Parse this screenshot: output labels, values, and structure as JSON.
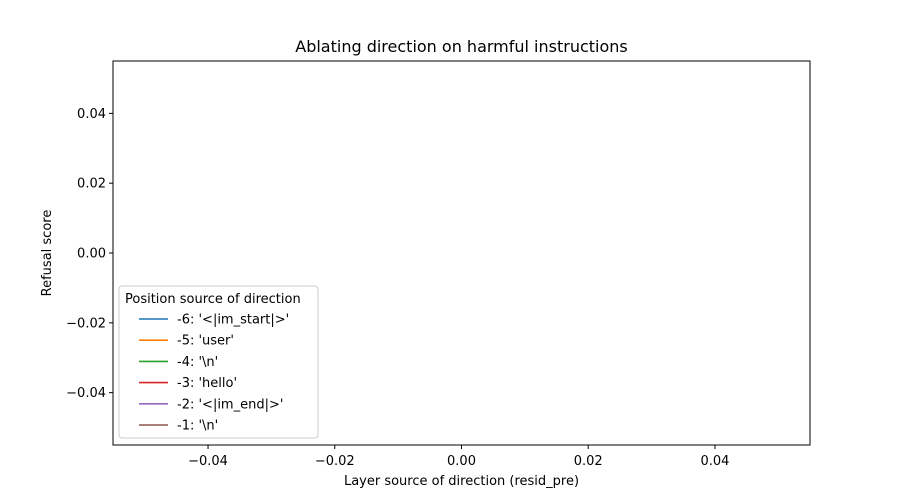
{
  "chart_data": {
    "type": "line",
    "title": "Ablating direction on harmful instructions",
    "xlabel": "Layer source of direction (resid_pre)",
    "ylabel": "Refusal score",
    "xlim": [
      -0.055,
      0.055
    ],
    "ylim": [
      -0.055,
      0.055
    ],
    "xticks": [
      -0.04,
      -0.02,
      0.0,
      0.02,
      0.04
    ],
    "xtick_labels": [
      "−0.04",
      "−0.02",
      "0.00",
      "0.02",
      "0.04"
    ],
    "yticks": [
      0.04,
      0.02,
      0.0,
      -0.02,
      -0.04
    ],
    "ytick_labels": [
      "0.04",
      "0.02",
      "0.00",
      "−0.02",
      "−0.04"
    ],
    "grid": false,
    "legend": {
      "title": "Position source of direction",
      "placement": "lower-left"
    },
    "series": [
      {
        "name": "-6: '<|im_start|>'",
        "color": "#1f77b4",
        "x": [],
        "y": []
      },
      {
        "name": "-5: 'user'",
        "color": "#ff7f0e",
        "x": [],
        "y": []
      },
      {
        "name": "-4: '\\n'",
        "color": "#2ca02c",
        "x": [],
        "y": []
      },
      {
        "name": "-3: 'hello'",
        "color": "#d62728",
        "x": [],
        "y": []
      },
      {
        "name": "-2: '<|im_end|>'",
        "color": "#9467bd",
        "x": [],
        "y": []
      },
      {
        "name": "-1: '\\n'",
        "color": "#8c564b",
        "x": [],
        "y": []
      }
    ]
  }
}
